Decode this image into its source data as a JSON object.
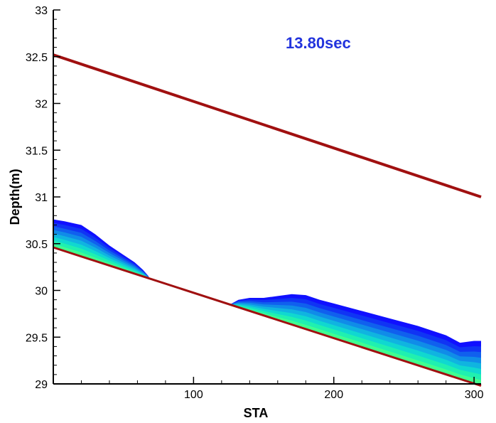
{
  "chart_data": {
    "type": "area",
    "time_label": "13.80sec",
    "xlabel": "STA",
    "ylabel": "Depth(m)",
    "xlim": [
      0,
      305
    ],
    "ylim": [
      29,
      33
    ],
    "x_ticks": [
      100,
      200,
      300
    ],
    "y_ticks": [
      29,
      29.5,
      30,
      30.5,
      31,
      31.5,
      32,
      32.5,
      33
    ],
    "y_tick_labels": [
      "29",
      "29.5",
      "30",
      "30.5",
      "31",
      "31.5",
      "32",
      "32.5",
      "33"
    ],
    "series": [
      {
        "x": [
          0,
          305
        ],
        "y": [
          32.52,
          31.0
        ]
      },
      {
        "x": [
          0,
          305
        ],
        "y": [
          30.46,
          28.98
        ]
      }
    ],
    "water_profiles": [
      {
        "x": [
          0,
          8,
          20,
          30,
          40,
          50,
          58,
          64,
          68
        ],
        "surface": [
          30.76,
          30.74,
          30.7,
          30.6,
          30.48,
          30.38,
          30.3,
          30.22,
          30.15
        ]
      },
      {
        "x": [
          126,
          132,
          140,
          150,
          160,
          170,
          180,
          190,
          200,
          220,
          240,
          260,
          280,
          290,
          300,
          305
        ],
        "surface": [
          29.85,
          29.9,
          29.92,
          29.92,
          29.94,
          29.96,
          29.95,
          29.9,
          29.86,
          29.78,
          29.7,
          29.62,
          29.52,
          29.44,
          29.46,
          29.46
        ]
      }
    ],
    "colors": {
      "line": "#a01010",
      "time_label": "#2233dd",
      "bands": [
        "#1010ff",
        "#1034f4",
        "#1060ee",
        "#108ce8",
        "#10b4e0",
        "#10d8d0",
        "#20f0b0",
        "#40ff90"
      ]
    }
  }
}
